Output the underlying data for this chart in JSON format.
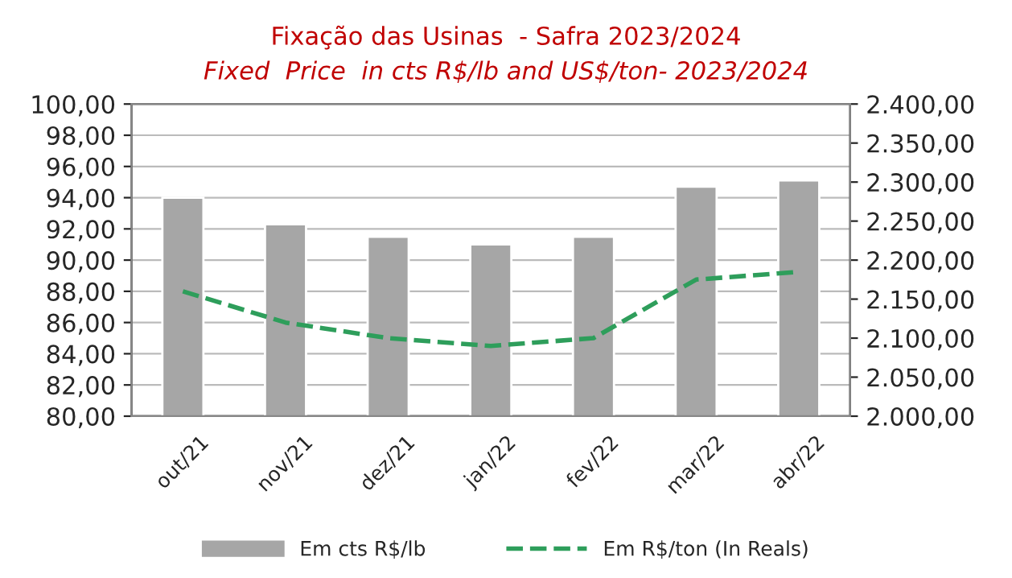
{
  "chart_data": {
    "type": "bar",
    "title": "Fixação das Usinas  - Safra 2023/2024",
    "subtitle": "Fixed  Price  in cts R$/lb and US$/ton- 2023/2024",
    "categories": [
      "out/21",
      "nov/21",
      "dez/21",
      "jan/22",
      "fev/22",
      "mar/22",
      "abr/22"
    ],
    "series": [
      {
        "name": "Em cts R$/lb",
        "color": "#a6a6a6",
        "values": [
          94.0,
          92.3,
          91.5,
          91.0,
          91.5,
          94.7,
          95.1
        ]
      },
      {
        "name": "Em R$/ton (In Reals)",
        "type": "line",
        "axis": "y2",
        "color": "#2e9e5b",
        "line_style": "dashed",
        "values": [
          2160,
          2120,
          2100,
          2090,
          2100,
          2175,
          2185
        ]
      }
    ],
    "ylim": [
      80,
      100
    ],
    "yticks": [
      {
        "value": 80,
        "label": "80,00"
      },
      {
        "value": 82,
        "label": "82,00"
      },
      {
        "value": 84,
        "label": "84,00"
      },
      {
        "value": 86,
        "label": "86,00"
      },
      {
        "value": 88,
        "label": "88,00"
      },
      {
        "value": 90,
        "label": "90,00"
      },
      {
        "value": 92,
        "label": "92,00"
      },
      {
        "value": 94,
        "label": "94,00"
      },
      {
        "value": 96,
        "label": "96,00"
      },
      {
        "value": 98,
        "label": "98,00"
      },
      {
        "value": 100,
        "label": "100,00"
      }
    ],
    "y2lim": [
      2000,
      2400
    ],
    "y2ticks": [
      {
        "value": 2000,
        "label": "2.000,00"
      },
      {
        "value": 2050,
        "label": "2.050,00"
      },
      {
        "value": 2100,
        "label": "2.100,00"
      },
      {
        "value": 2150,
        "label": "2.150,00"
      },
      {
        "value": 2200,
        "label": "2.200,00"
      },
      {
        "value": 2250,
        "label": "2.250,00"
      },
      {
        "value": 2300,
        "label": "2.300,00"
      },
      {
        "value": 2350,
        "label": "2.350,00"
      },
      {
        "value": 2400,
        "label": "2.400,00"
      }
    ],
    "grid": "y",
    "legend": "bottom"
  }
}
